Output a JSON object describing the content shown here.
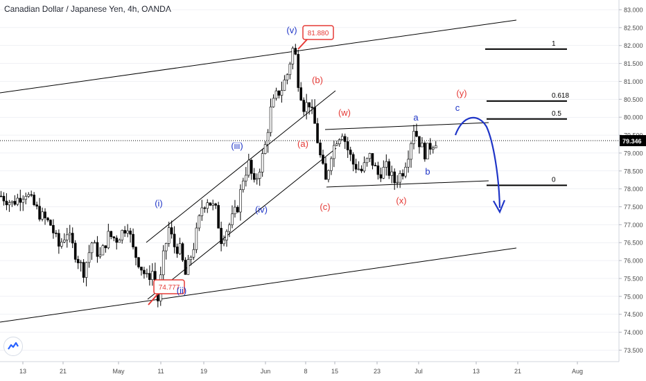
{
  "header": {
    "title": "Canadian Dollar / Japanese Yen, 4h, OANDA"
  },
  "colors": {
    "background": "#ffffff",
    "candle": "#000000",
    "label_red": "#e53935",
    "label_blue": "#1f35c7",
    "arrow_blue": "#1f35c7",
    "axis_text": "#4a4a4a",
    "grid": "#e0e3eb",
    "price_label_bg": "#000000"
  },
  "chart_data": {
    "type": "candlestick",
    "symbol": "CAD/JPY",
    "interval": "4h",
    "source": "OANDA",
    "ylim": [
      73.25,
      83.25
    ],
    "x_tick_labels": [
      "13",
      "21",
      "May",
      "11",
      "19",
      "Jun",
      "8",
      "15",
      "23",
      "Jul",
      "13",
      "21",
      "Aug"
    ],
    "y_tick_labels": [
      "73.500",
      "74.000",
      "74.500",
      "75.000",
      "75.500",
      "76.000",
      "76.500",
      "77.000",
      "77.500",
      "78.000",
      "78.500",
      "79.000",
      "79.500",
      "80.000",
      "80.500",
      "81.000",
      "81.500",
      "82.000",
      "82.500",
      "83.000"
    ],
    "current_price": 79.346,
    "current_price_label": "79.346",
    "price_path": [
      [
        0,
        77.8
      ],
      [
        4,
        77.6
      ],
      [
        9,
        77.9
      ],
      [
        14,
        77.3
      ],
      [
        18,
        77.0
      ],
      [
        21,
        76.4
      ],
      [
        24,
        76.8
      ],
      [
        27,
        76.2
      ],
      [
        30,
        75.7
      ],
      [
        33,
        76.5
      ],
      [
        36,
        76.1
      ],
      [
        39,
        76.7
      ],
      [
        42,
        76.6
      ],
      [
        46,
        77.0
      ],
      [
        48,
        76.3
      ],
      [
        51,
        75.8
      ],
      [
        53,
        75.5
      ],
      [
        55,
        75.7
      ],
      [
        57,
        74.9
      ],
      [
        59,
        76.1
      ],
      [
        61,
        76.9
      ],
      [
        63,
        76.4
      ],
      [
        65,
        76.3
      ],
      [
        67,
        75.6
      ],
      [
        70,
        76.4
      ],
      [
        73,
        77.5
      ],
      [
        75,
        77.7
      ],
      [
        78,
        77.4
      ],
      [
        80,
        76.6
      ],
      [
        83,
        77.0
      ],
      [
        86,
        77.5
      ],
      [
        88,
        78.3
      ],
      [
        90,
        78.7
      ],
      [
        92,
        78.1
      ],
      [
        94,
        78.6
      ],
      [
        96,
        79.2
      ],
      [
        98,
        80.2
      ],
      [
        100,
        80.6
      ],
      [
        102,
        80.8
      ],
      [
        104,
        81.2
      ],
      [
        106,
        81.9
      ],
      [
        107,
        81.7
      ],
      [
        108,
        81.0
      ],
      [
        110,
        80.3
      ],
      [
        112,
        80.4
      ],
      [
        114,
        79.8
      ],
      [
        116,
        78.9
      ],
      [
        118,
        78.2
      ],
      [
        120,
        79.0
      ],
      [
        122,
        79.4
      ],
      [
        124,
        79.6
      ],
      [
        126,
        79.1
      ],
      [
        128,
        78.7
      ],
      [
        131,
        78.5
      ],
      [
        134,
        78.9
      ],
      [
        137,
        78.4
      ],
      [
        140,
        78.6
      ],
      [
        143,
        78.2
      ],
      [
        146,
        78.5
      ],
      [
        148,
        79.0
      ],
      [
        150,
        79.7
      ],
      [
        152,
        79.3
      ],
      [
        154,
        79.0
      ],
      [
        156,
        79.2
      ],
      [
        158,
        79.35
      ]
    ],
    "levels": [
      {
        "label": "1",
        "value": 81.9
      },
      {
        "label": "0.618",
        "value": 80.45
      },
      {
        "label": "0.5",
        "value": 79.95
      },
      {
        "label": "0",
        "value": 78.1
      }
    ],
    "annotations": [
      {
        "text": "(v)",
        "color": "blue",
        "x": 106,
        "y": 82.45
      },
      {
        "text": "(i)",
        "color": "blue",
        "x": 57,
        "y": 77.55
      },
      {
        "text": "(ii)",
        "color": "blue",
        "x": 65.5,
        "y": 74.95
      },
      {
        "text": "(iii)",
        "color": "blue",
        "x": 84.5,
        "y": 79.25
      },
      {
        "text": "(iv)",
        "color": "blue",
        "x": 94,
        "y": 77.3
      },
      {
        "text": "(a)",
        "color": "red",
        "x": 108.5,
        "y": 79.3
      },
      {
        "text": "(b)",
        "color": "red",
        "x": 114,
        "y": 81.0
      },
      {
        "text": "(c)",
        "color": "red",
        "x": 117,
        "y": 77.4
      },
      {
        "text": "(w)",
        "color": "red",
        "x": 123.5,
        "y": 80.0
      },
      {
        "text": "(x)",
        "color": "red",
        "x": 143.5,
        "y": 77.55
      },
      {
        "text": "(y)",
        "color": "red",
        "x": 165,
        "y": 80.65
      },
      {
        "text": "a",
        "color": "blue",
        "x": 149,
        "y": 79.95
      },
      {
        "text": "b",
        "color": "blue",
        "x": 153.5,
        "y": 78.6
      },
      {
        "text": "c",
        "color": "blue",
        "x": 164,
        "y": 80.25
      }
    ],
    "price_callouts": [
      {
        "text": "81.880",
        "x": 106,
        "y": 81.88
      },
      {
        "text": "74.777",
        "x": 53,
        "y": 74.777
      }
    ]
  }
}
